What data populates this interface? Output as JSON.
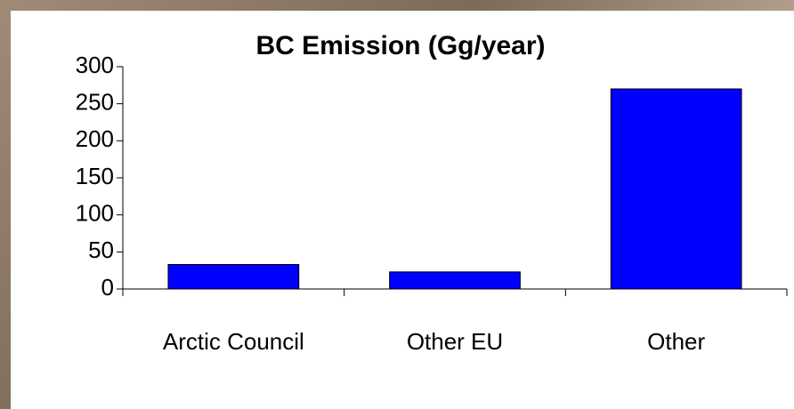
{
  "chart_data": {
    "type": "bar",
    "title": "BC Emission (Gg/year)",
    "categories": [
      "Arctic Council",
      "Other EU",
      "Other"
    ],
    "values": [
      33,
      23,
      270
    ],
    "color": "#0000ff",
    "ylim": [
      0,
      300
    ],
    "yticks": [
      0,
      50,
      100,
      150,
      200,
      250,
      300
    ]
  }
}
